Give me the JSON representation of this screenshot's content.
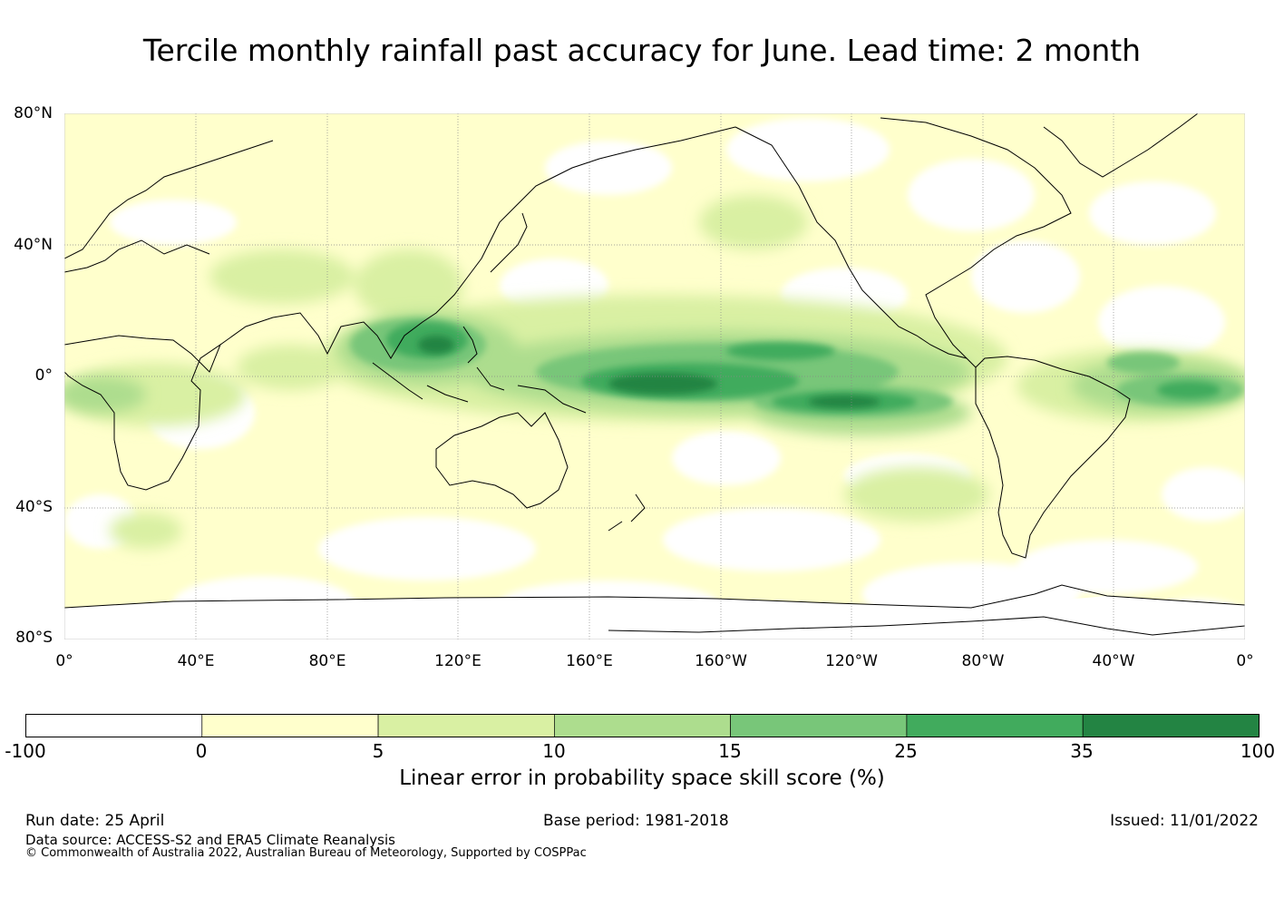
{
  "title": "Tercile monthly rainfall past accuracy for June. Lead time: 2 month",
  "map": {
    "lat_labels": [
      "80°N",
      "40°N",
      "0°",
      "40°S",
      "80°S"
    ],
    "lon_labels": [
      "0°",
      "40°E",
      "80°E",
      "120°E",
      "160°E",
      "160°W",
      "120°W",
      "80°W",
      "40°W",
      "0°"
    ],
    "colors": {
      "ocean_base": "#ffffcc",
      "coast": "#000000",
      "grid": "#888888"
    }
  },
  "colorbar": {
    "ticks": [
      "-100",
      "0",
      "5",
      "10",
      "15",
      "25",
      "35",
      "100"
    ],
    "colors": [
      "#ffffff",
      "#ffffcc",
      "#d9f0a3",
      "#addd8e",
      "#78c679",
      "#41ab5d",
      "#238443"
    ],
    "label": "Linear error in probability space skill score (%)"
  },
  "footer": {
    "run_date": "Run date: 25 April",
    "base_period": "Base period: 1981-2018",
    "issued": "Issued: 11/01/2022",
    "data_source": "Data source: ACCESS-S2 and ERA5 Climate Reanalysis",
    "copyright": "© Commonwealth of Australia 2022, Australian Bureau of Meteorology, Supported by COSPPac"
  }
}
